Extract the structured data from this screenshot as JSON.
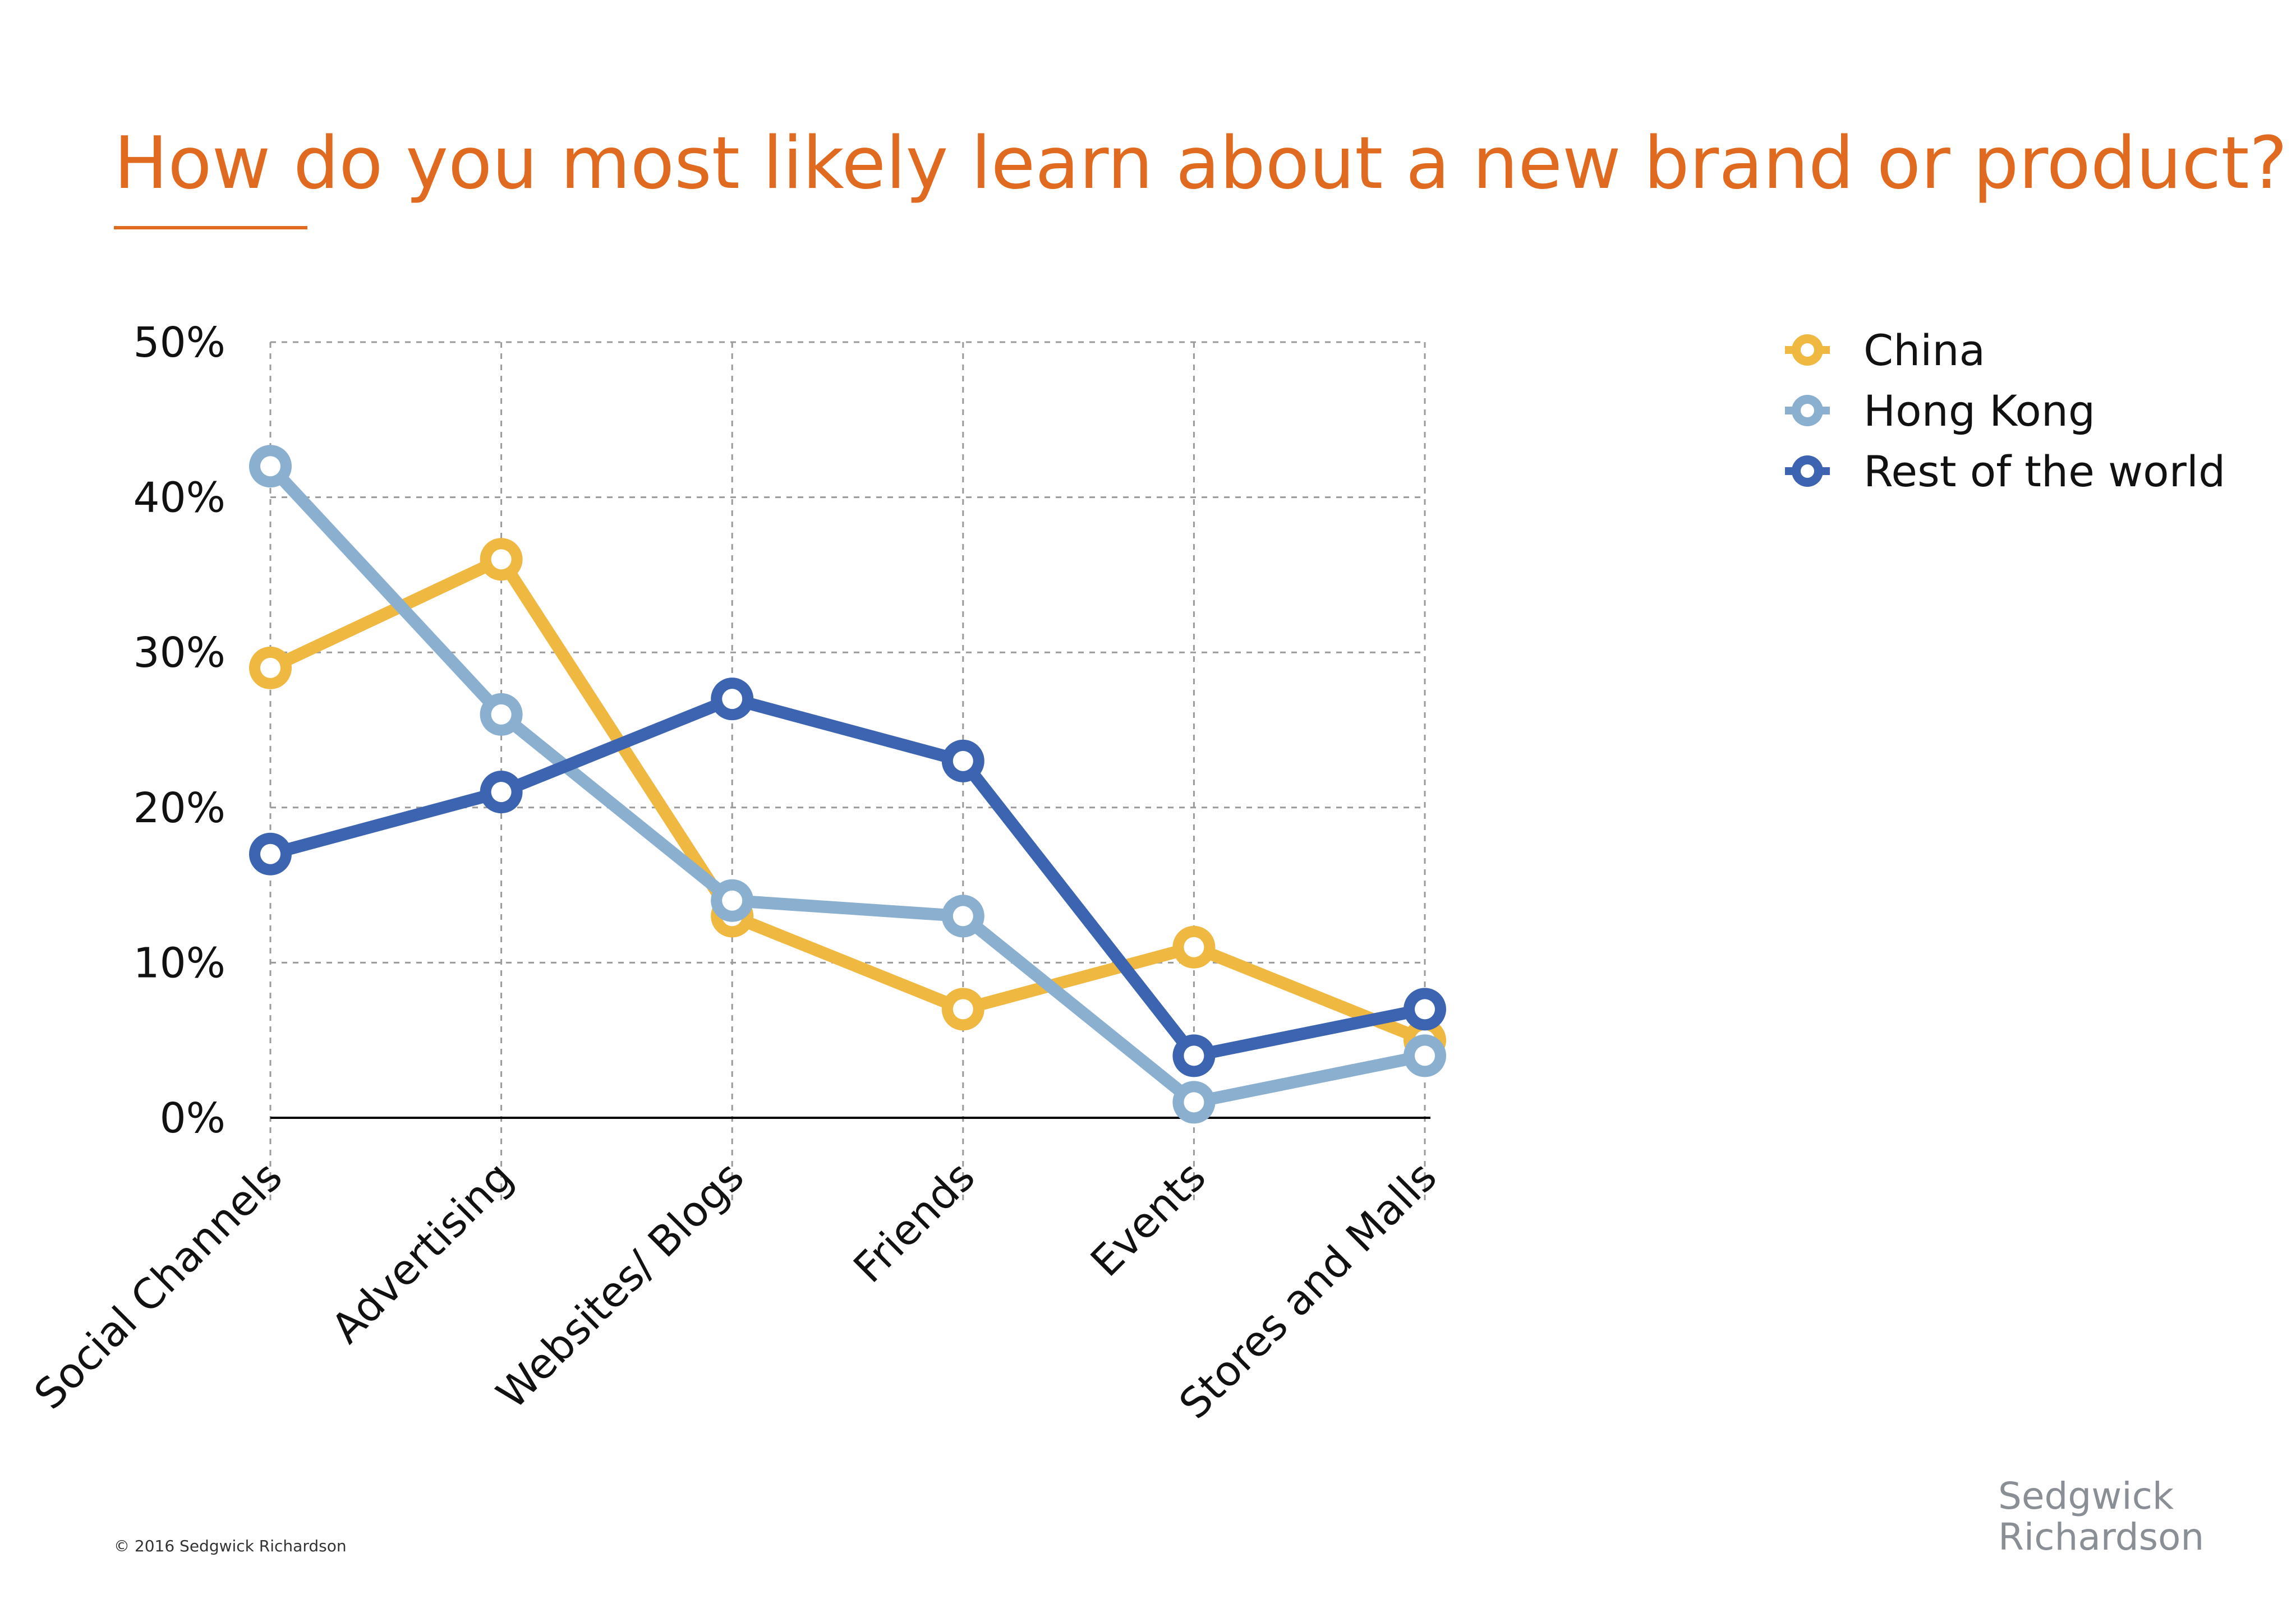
{
  "chart_data": {
    "type": "line",
    "title": "How do you most likely learn about a new brand or product?",
    "categories": [
      "Social Channels",
      "Advertising",
      "Websites/ Blogs",
      "Friends",
      "Events",
      "Stores and Malls"
    ],
    "y_ticks": [
      "0%",
      "10%",
      "20%",
      "30%",
      "40%",
      "50%"
    ],
    "ylim": [
      0,
      50
    ],
    "y_unit": "%",
    "grid": true,
    "legend_position": "top-right",
    "series": [
      {
        "name": "China",
        "color": "#efb840",
        "values": [
          29,
          36,
          13,
          7,
          11,
          5
        ]
      },
      {
        "name": "Hong Kong",
        "color": "#8aafcf",
        "values": [
          42,
          26,
          14,
          13,
          1,
          4
        ]
      },
      {
        "name": "Rest of the world",
        "color": "#3d64b0",
        "values": [
          17,
          21,
          27,
          23,
          4,
          7
        ]
      }
    ]
  },
  "footer": {
    "copyright": "© 2016 Sedgwick Richardson",
    "brand_line1": "Sedgwick",
    "brand_line2": "Richardson"
  },
  "colors": {
    "title": "#e06a1f",
    "grid": "#9a9a9a",
    "axis": "#000000"
  }
}
